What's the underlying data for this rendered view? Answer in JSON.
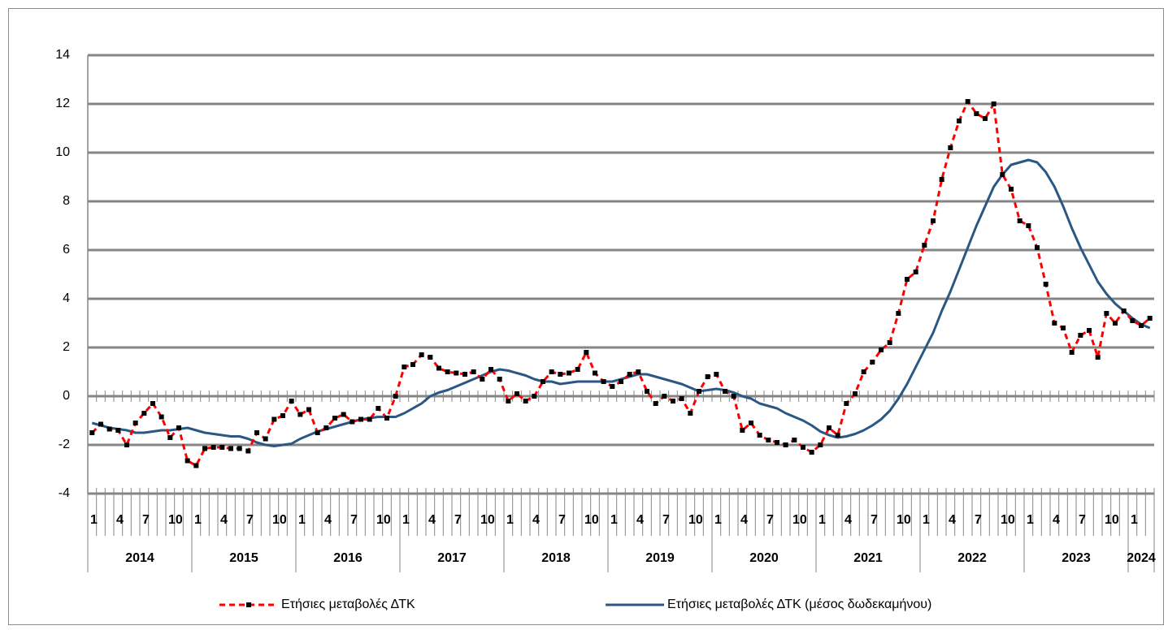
{
  "chart_data": {
    "type": "line",
    "categories": [
      "1",
      null,
      null,
      "4",
      null,
      null,
      "7",
      null,
      null,
      "10",
      null,
      null,
      "1",
      null,
      null,
      "4",
      null,
      null,
      "7",
      null,
      null,
      "10",
      null,
      null,
      "1",
      null,
      null,
      "4",
      null,
      null,
      "7",
      null,
      null,
      "10",
      null,
      null,
      "1",
      null,
      null,
      "4",
      null,
      null,
      "7",
      null,
      null,
      "10",
      null,
      null,
      "1",
      null,
      null,
      "4",
      null,
      null,
      "7",
      null,
      null,
      "10",
      null,
      null,
      "1",
      null,
      null,
      "4",
      null,
      null,
      "7",
      null,
      null,
      "10",
      null,
      null,
      "1",
      null,
      null,
      "4",
      null,
      null,
      "7",
      null,
      null,
      "10",
      null,
      null,
      "1",
      null,
      null,
      "4",
      null,
      null,
      "7",
      null,
      null,
      "10",
      null,
      null,
      "1",
      null,
      null,
      "4",
      null,
      null,
      "7",
      null,
      null,
      "10",
      null,
      null,
      "1",
      null,
      null,
      "4",
      null,
      null,
      "7",
      null,
      null,
      "10",
      null,
      null,
      "1",
      null,
      null
    ],
    "year_groups": [
      {
        "label": "2014",
        "span": 12
      },
      {
        "label": "2015",
        "span": 12
      },
      {
        "label": "2016",
        "span": 12
      },
      {
        "label": "2017",
        "span": 12
      },
      {
        "label": "2018",
        "span": 12
      },
      {
        "label": "2019",
        "span": 12
      },
      {
        "label": "2020",
        "span": 12
      },
      {
        "label": "2021",
        "span": 12
      },
      {
        "label": "2022",
        "span": 12
      },
      {
        "label": "2023",
        "span": 12
      },
      {
        "label": "2024",
        "span": 3
      }
    ],
    "series": [
      {
        "name": "Ετήσιες μεταβολές ΔΤΚ",
        "color": "#ff0000",
        "dashed": true,
        "marker": "square",
        "marker_color": "#000000",
        "values": [
          -1.5,
          -1.15,
          -1.35,
          -1.4,
          -2.0,
          -1.1,
          -0.7,
          -0.3,
          -0.85,
          -1.7,
          -1.3,
          -2.65,
          -2.85,
          -2.15,
          -2.1,
          -2.1,
          -2.15,
          -2.15,
          -2.25,
          -1.5,
          -1.75,
          -0.95,
          -0.8,
          -0.2,
          -0.75,
          -0.55,
          -1.5,
          -1.3,
          -0.9,
          -0.75,
          -1.05,
          -0.95,
          -0.95,
          -0.5,
          -0.9,
          0,
          1.2,
          1.3,
          1.7,
          1.6,
          1.15,
          1.0,
          0.95,
          0.9,
          1.0,
          0.7,
          1.1,
          0.7,
          -0.2,
          0.1,
          -0.2,
          0,
          0.6,
          1.0,
          0.9,
          0.95,
          1.1,
          1.8,
          0.95,
          0.6,
          0.4,
          0.6,
          0.9,
          1.0,
          0.2,
          -0.3,
          0,
          -0.2,
          -0.1,
          -0.7,
          0.2,
          0.8,
          0.9,
          0.2,
          0,
          -1.4,
          -1.1,
          -1.6,
          -1.8,
          -1.9,
          -2.0,
          -1.8,
          -2.1,
          -2.3,
          -2.0,
          -1.3,
          -1.6,
          -0.3,
          0.1,
          1.0,
          1.4,
          1.9,
          2.2,
          3.4,
          4.8,
          5.1,
          6.2,
          7.2,
          8.9,
          10.2,
          11.3,
          12.1,
          11.6,
          11.4,
          12.0,
          9.1,
          8.5,
          7.2,
          7.0,
          6.1,
          4.6,
          3.0,
          2.8,
          1.8,
          2.5,
          2.7,
          1.6,
          3.4,
          3.0,
          3.5,
          3.1,
          2.9,
          3.2
        ]
      },
      {
        "name": "Ετήσιες μεταβολές ΔΤΚ (μέσος δωδεκαμήνου)",
        "color": "#2a5783",
        "dashed": false,
        "marker": "none",
        "values": [
          -1.1,
          -1.2,
          -1.3,
          -1.35,
          -1.4,
          -1.5,
          -1.5,
          -1.45,
          -1.4,
          -1.4,
          -1.35,
          -1.3,
          -1.4,
          -1.5,
          -1.55,
          -1.6,
          -1.65,
          -1.65,
          -1.75,
          -1.9,
          -2.0,
          -2.05,
          -2.0,
          -1.95,
          -1.75,
          -1.6,
          -1.45,
          -1.35,
          -1.25,
          -1.15,
          -1.05,
          -0.95,
          -0.9,
          -0.85,
          -0.85,
          -0.85,
          -0.7,
          -0.5,
          -0.3,
          0,
          0.15,
          0.25,
          0.4,
          0.55,
          0.7,
          0.85,
          1.0,
          1.1,
          1.05,
          0.95,
          0.85,
          0.7,
          0.6,
          0.6,
          0.5,
          0.55,
          0.6,
          0.6,
          0.6,
          0.6,
          0.6,
          0.7,
          0.8,
          0.9,
          0.9,
          0.8,
          0.7,
          0.6,
          0.5,
          0.35,
          0.2,
          0.25,
          0.3,
          0.25,
          0.15,
          0,
          -0.1,
          -0.3,
          -0.4,
          -0.5,
          -0.7,
          -0.85,
          -1.0,
          -1.2,
          -1.45,
          -1.6,
          -1.7,
          -1.65,
          -1.55,
          -1.4,
          -1.2,
          -0.95,
          -0.6,
          -0.1,
          0.5,
          1.2,
          1.9,
          2.6,
          3.5,
          4.3,
          5.2,
          6.1,
          7.0,
          7.8,
          8.6,
          9.1,
          9.5,
          9.6,
          9.7,
          9.6,
          9.2,
          8.6,
          7.8,
          6.9,
          6.1,
          5.4,
          4.7,
          4.2,
          3.8,
          3.5,
          3.2,
          2.95,
          2.8
        ]
      }
    ],
    "ylim": [
      -4,
      14
    ],
    "yticks": [
      -4,
      -2,
      0,
      2,
      4,
      6,
      8,
      10,
      12,
      14
    ],
    "grid": true,
    "legend": "bottom"
  }
}
